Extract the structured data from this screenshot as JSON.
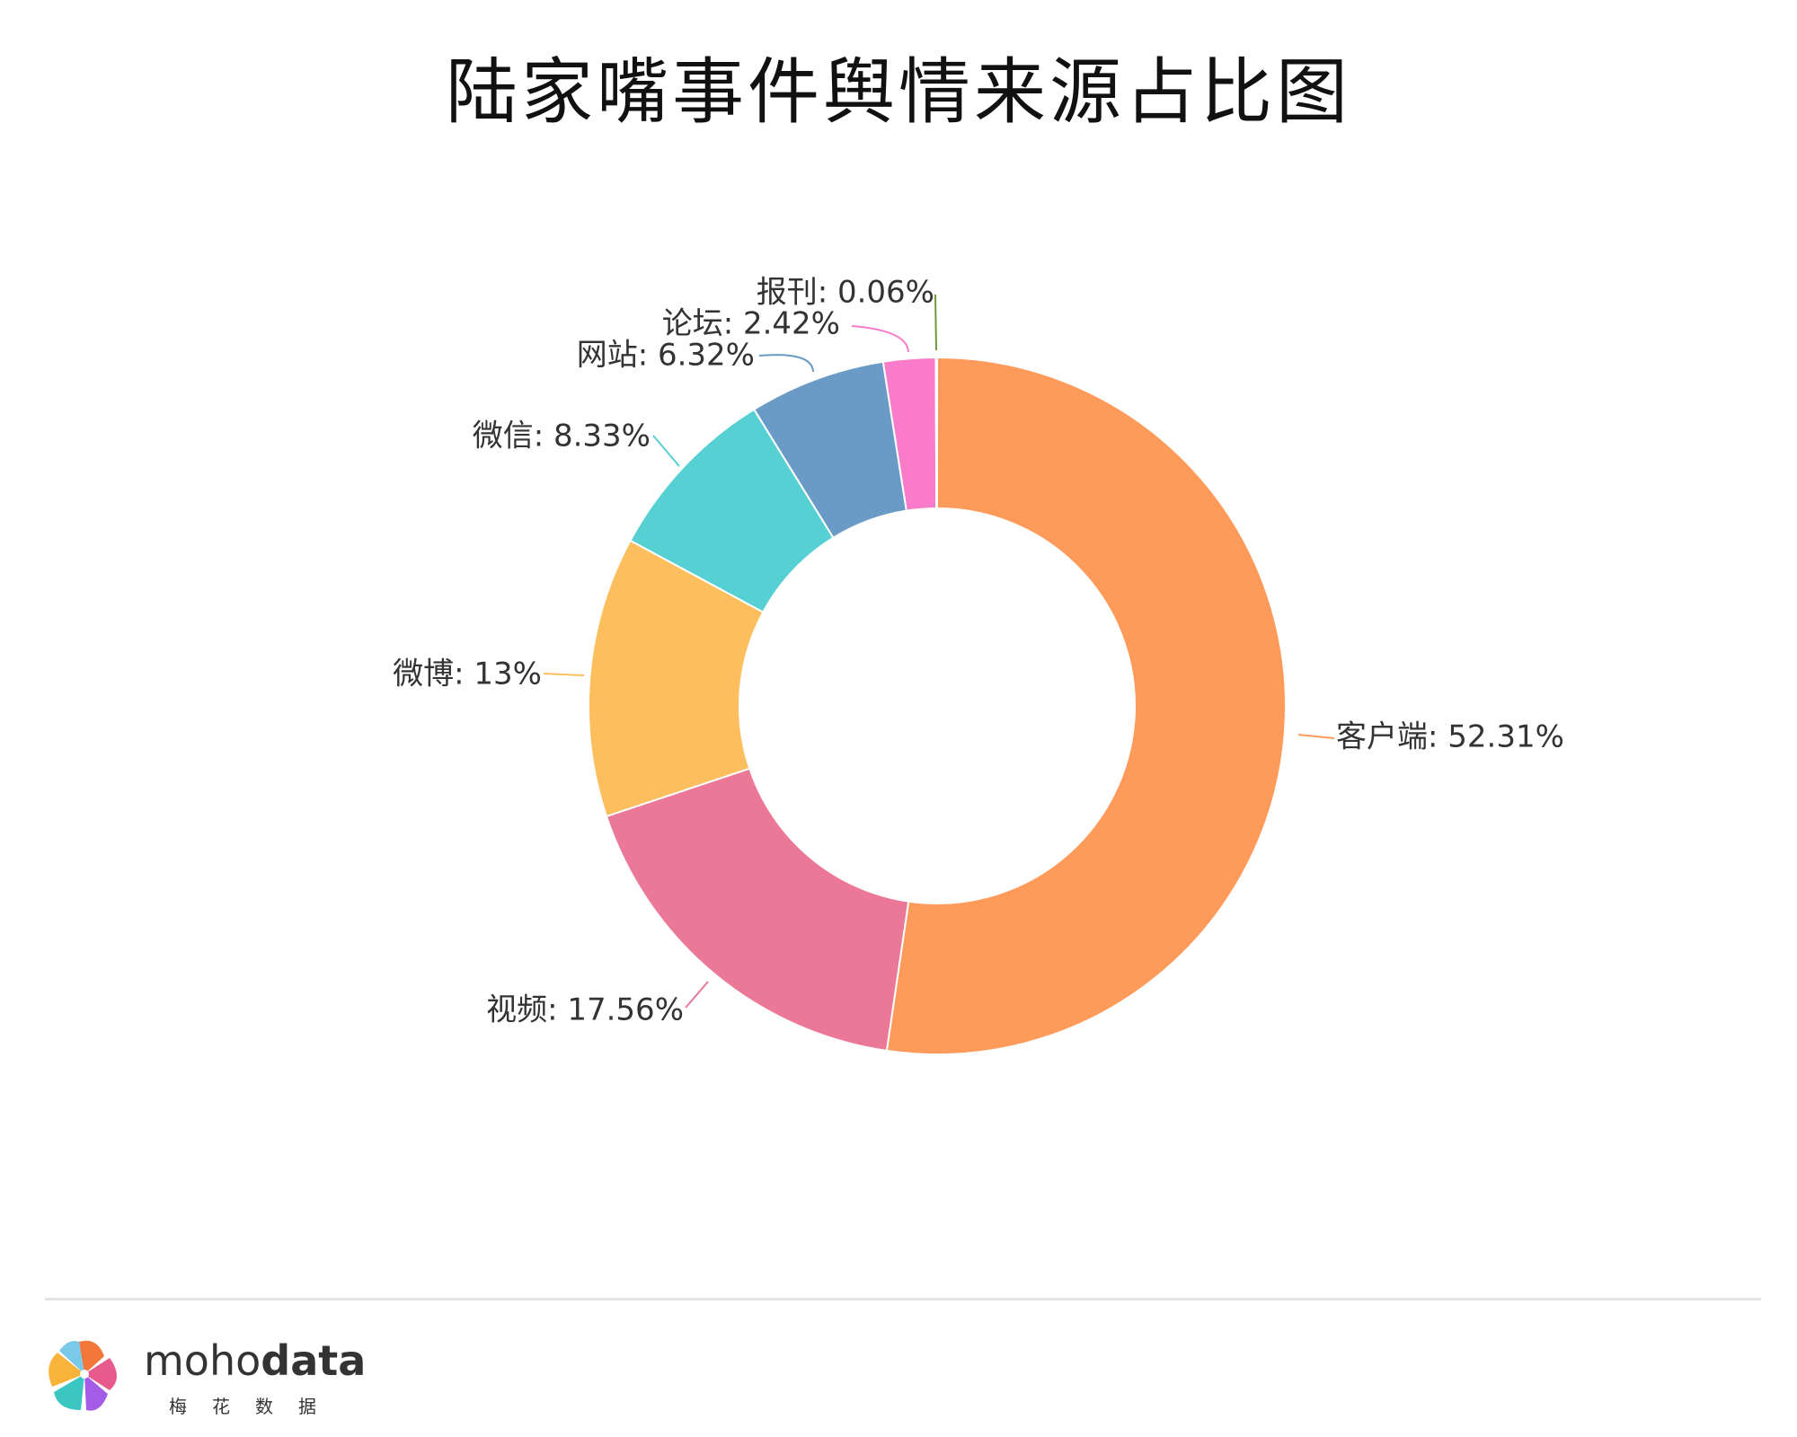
{
  "chart_data": {
    "type": "pie",
    "title": "陆家嘴事件舆情来源占比图",
    "donut": true,
    "legend": "none",
    "slices": [
      {
        "name": "客户端",
        "value": 52.31,
        "label": "客户端: 52.31%",
        "color": "#FE9B5B"
      },
      {
        "name": "视频",
        "value": 17.56,
        "label": "视频: 17.56%",
        "color": "#EB7896"
      },
      {
        "name": "微博",
        "value": 13,
        "label": "微博: 13%",
        "color": "#FDBE5E"
      },
      {
        "name": "微信",
        "value": 8.33,
        "label": "微信: 8.33%",
        "color": "#57D0D3"
      },
      {
        "name": "网站",
        "value": 6.32,
        "label": "网站: 6.32%",
        "color": "#6A9BC6"
      },
      {
        "name": "论坛",
        "value": 2.42,
        "label": "论坛: 2.42%",
        "color": "#F97BCA"
      },
      {
        "name": "报刊",
        "value": 0.06,
        "label": "报刊: 0.06%",
        "color": "#6E9A3E"
      }
    ]
  },
  "footer": {
    "brand_light": "moho",
    "brand_bold": "data",
    "brand_sub": "梅花数据"
  }
}
